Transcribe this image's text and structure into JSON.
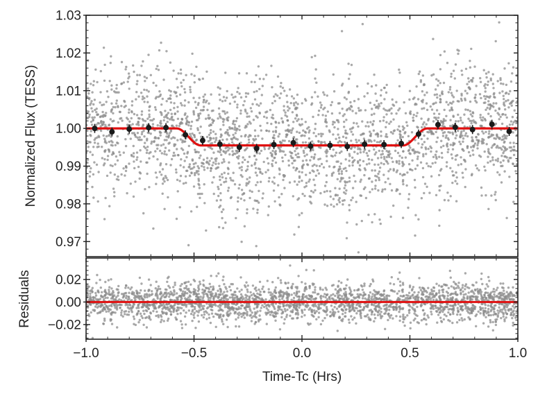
{
  "chart_data": [
    {
      "type": "scatter",
      "panel": "flux",
      "xlim": [
        -1.0,
        1.0
      ],
      "ylim": [
        0.966,
        1.03
      ],
      "ylabel": "Normalized Flux (TESS)",
      "ytick_labels": [
        "0.97",
        "0.98",
        "0.99",
        "1.00",
        "1.01",
        "1.02",
        "1.03"
      ],
      "ytick_values": [
        0.97,
        0.98,
        0.99,
        1.0,
        1.01,
        1.02,
        1.03
      ],
      "raw_data": {
        "color": "#8c8c8c",
        "scatter": 0.0085,
        "approx_points": 2500
      },
      "binned": {
        "color": "#1a1a1a",
        "x": [
          -0.96,
          -0.88,
          -0.8,
          -0.71,
          -0.63,
          -0.54,
          -0.46,
          -0.38,
          -0.29,
          -0.21,
          -0.13,
          -0.04,
          0.04,
          0.13,
          0.21,
          0.29,
          0.38,
          0.46,
          0.54,
          0.63,
          0.71,
          0.79,
          0.88,
          0.96
        ],
        "y": [
          1.0,
          0.9991,
          0.9998,
          1.0002,
          1.0002,
          0.9983,
          0.9968,
          0.9958,
          0.995,
          0.9947,
          0.9957,
          0.9962,
          0.9953,
          0.9955,
          0.9952,
          0.9958,
          0.9957,
          0.996,
          0.9985,
          1.001,
          1.0003,
          0.9997,
          1.0011,
          0.9992
        ],
        "yerr": 0.0012
      },
      "model": {
        "color": "#e01010",
        "baseline": 1.0,
        "depth": 0.0045,
        "ingress_egress_hrs": 0.11,
        "total_duration_hrs": 1.16
      }
    },
    {
      "type": "scatter",
      "panel": "residuals",
      "xlim": [
        -1.0,
        1.0
      ],
      "ylim": [
        -0.033,
        0.039
      ],
      "xlabel": "Time-Tc (Hrs)",
      "ylabel": "Residuals",
      "ytick_labels": [
        "−0.02",
        "0.00",
        "0.02"
      ],
      "ytick_values": [
        -0.02,
        0.0,
        0.02
      ],
      "xtick_labels": [
        "−1.0",
        "−0.5",
        "0.0",
        "0.5",
        "1.0"
      ],
      "xtick_values": [
        -1.0,
        -0.5,
        0.0,
        0.5,
        1.0
      ],
      "raw_data": {
        "color": "#8c8c8c",
        "scatter": 0.0085,
        "approx_points": 2500
      },
      "zero_line": {
        "color": "#e01010",
        "value": 0.0
      }
    }
  ]
}
